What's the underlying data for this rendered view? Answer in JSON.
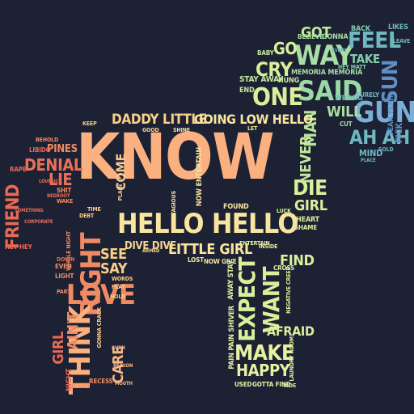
{
  "background": "#1c2133",
  "palette": [
    "#fbb07f",
    "#f9e4a0",
    "#d8ef9b",
    "#9ad9a6",
    "#6fb8c0",
    "#5e8fc6",
    "#e86a57",
    "#f08a62"
  ],
  "words": [
    {
      "text": "KNOW",
      "color": "#fbb07f"
    },
    {
      "text": "HELLO HELLO",
      "color": "#f9e4a0"
    },
    {
      "text": "GUN",
      "color": "#7ab0d8"
    },
    {
      "text": "SAID",
      "color": "#9ad9a6"
    },
    {
      "text": "ONE",
      "color": "#d8ef9b"
    },
    {
      "text": "WAY",
      "color": "#a7dfa5"
    },
    {
      "text": "FEEL",
      "color": "#6fb8c0"
    },
    {
      "text": "SUN",
      "color": "#5e8fc6"
    },
    {
      "text": "AH AH",
      "color": "#6fb8c0"
    },
    {
      "text": "CRY",
      "color": "#d8ef9b"
    },
    {
      "text": "GO",
      "color": "#d8ef9b"
    },
    {
      "text": "GOT",
      "color": "#c3e89e"
    },
    {
      "text": "TAKE",
      "color": "#86cdb1"
    },
    {
      "text": "MAN",
      "color": "#b8e49a"
    },
    {
      "text": "WILL",
      "color": "#a8dea3"
    },
    {
      "text": "DIE",
      "color": "#d8ef9b"
    },
    {
      "text": "GIRL",
      "color": "#d8ef9b"
    },
    {
      "text": "NEVER",
      "color": "#c3e89e"
    },
    {
      "text": "DADDY LITTLE",
      "color": "#fbcf8a"
    },
    {
      "text": "GOING LOW HELLO",
      "color": "#f9e4a0"
    },
    {
      "text": "LITTLE GIRL",
      "color": "#f9e4a0"
    },
    {
      "text": "DIVE DIVE",
      "color": "#f6d68e"
    },
    {
      "text": "RIGHT",
      "color": "#f08a62"
    },
    {
      "text": "LOVE",
      "color": "#f08a62"
    },
    {
      "text": "THINK",
      "color": "#fbb07f"
    },
    {
      "text": "SEE",
      "color": "#fbcf8a"
    },
    {
      "text": "SAY",
      "color": "#fbcf8a"
    },
    {
      "text": "AIN'T",
      "color": "#f08a62"
    },
    {
      "text": "GIRL",
      "color": "#e86a57"
    },
    {
      "text": "CARE",
      "color": "#f8b586"
    },
    {
      "text": "COME",
      "color": "#f9c690"
    },
    {
      "text": "DENIAL",
      "color": "#e9715a"
    },
    {
      "text": "LIE",
      "color": "#e9715a"
    },
    {
      "text": "FRIEND",
      "color": "#e86a57"
    },
    {
      "text": "PINES",
      "color": "#f08a62"
    },
    {
      "text": "EXPECT",
      "color": "#d8ef9b"
    },
    {
      "text": "WANT",
      "color": "#d8ef9b"
    },
    {
      "text": "FIND",
      "color": "#d8ef9b"
    },
    {
      "text": "MAKE",
      "color": "#e8f0a4"
    },
    {
      "text": "HAPPY",
      "color": "#e8f0a4"
    },
    {
      "text": "AFRAID",
      "color": "#d8ef9b"
    },
    {
      "text": "STAY AWAY",
      "color": "#c3e89e"
    },
    {
      "text": "MEMORIA MEMORIA",
      "color": "#a8dea3"
    },
    {
      "text": "PAIN PAIN SHIVER",
      "color": "#e8f0a4"
    },
    {
      "text": "AWAY STAY",
      "color": "#e8f0a4"
    },
    {
      "text": "NOW ENTERTAIN",
      "color": "#f9e4a0"
    },
    {
      "text": "BELIEVE",
      "color": "#a8dea3"
    },
    {
      "text": "GONNA",
      "color": "#a8dea3"
    },
    {
      "text": "BACK",
      "color": "#86cdb1"
    },
    {
      "text": "LIKES",
      "color": "#6fb8c0"
    },
    {
      "text": "WRONG",
      "color": "#6fb8c0"
    },
    {
      "text": "SURELY",
      "color": "#6fb8c0"
    },
    {
      "text": "MIND",
      "color": "#6fb8c0"
    },
    {
      "text": "PICK",
      "color": "#5e8fc6"
    },
    {
      "text": "YEAH YEAH",
      "color": "#5e8fc6"
    },
    {
      "text": "HEY HEY",
      "color": "#e86a57"
    },
    {
      "text": "NIGHT",
      "color": "#e86a57"
    },
    {
      "text": "JESUS",
      "color": "#f08a62"
    },
    {
      "text": "RECESS",
      "color": "#f08a62"
    },
    {
      "text": "USED",
      "color": "#e8f0a4"
    },
    {
      "text": "GOTTA FIND",
      "color": "#e8f0a4"
    },
    {
      "text": "RIDE",
      "color": "#d8ef9b"
    },
    {
      "text": "FOUND",
      "color": "#f9e4a0"
    },
    {
      "text": "LOST",
      "color": "#f9e4a0"
    },
    {
      "text": "NOW GIVE",
      "color": "#f9e4a0"
    },
    {
      "text": "HEART",
      "color": "#d8ef9b"
    },
    {
      "text": "SHAME",
      "color": "#d8ef9b"
    },
    {
      "text": "CROSS",
      "color": "#d8ef9b"
    },
    {
      "text": "HUNG",
      "color": "#c3e89e"
    },
    {
      "text": "END",
      "color": "#c3e89e"
    },
    {
      "text": "BABY",
      "color": "#c3e89e"
    },
    {
      "text": "CUT",
      "color": "#a8dea3"
    },
    {
      "text": "PLACE",
      "color": "#6fb8c0"
    },
    {
      "text": "BEHOLD",
      "color": "#f08a62"
    },
    {
      "text": "LIBIDO",
      "color": "#e86a57"
    },
    {
      "text": "RAPE",
      "color": "#e86a57"
    },
    {
      "text": "EVEN",
      "color": "#f08a62"
    },
    {
      "text": "LIGHT",
      "color": "#f08a62"
    },
    {
      "text": "TIME",
      "color": "#fbcf8a"
    },
    {
      "text": "KEEP",
      "color": "#fbcf8a"
    },
    {
      "text": "SHIT",
      "color": "#f08a62"
    },
    {
      "text": "DEBT",
      "color": "#fbcf8a"
    },
    {
      "text": "GOOD",
      "color": "#fbcf8a"
    },
    {
      "text": "SHINE",
      "color": "#f9e4a0"
    },
    {
      "text": "LET",
      "color": "#f9e4a0"
    },
    {
      "text": "BURN",
      "color": "#f8b586"
    },
    {
      "text": "REASON",
      "color": "#f8b586"
    },
    {
      "text": "INSIDE",
      "color": "#e8f0a4"
    },
    {
      "text": "ENTERTAIN",
      "color": "#e8f0a4"
    },
    {
      "text": "LUCK",
      "color": "#d8ef9b"
    },
    {
      "text": "SOLD",
      "color": "#6fb8c0"
    },
    {
      "text": "HEY MATT",
      "color": "#86cdb1"
    },
    {
      "text": "CONTAGIOUS",
      "color": "#f9e4a0"
    },
    {
      "text": "WHOLE NIGHT",
      "color": "#f08a62"
    },
    {
      "text": "LOVESICK",
      "color": "#e86a57"
    },
    {
      "text": "GONNA CRACK",
      "color": "#fbcf8a"
    },
    {
      "text": "BEDROOT",
      "color": "#e86a57"
    },
    {
      "text": "WAKE",
      "color": "#f08a62"
    },
    {
      "text": "PLAIN",
      "color": "#f9c690"
    },
    {
      "text": "EVERY",
      "color": "#6fb8c0"
    },
    {
      "text": "LAUNDRY ROOM",
      "color": "#e8f0a4"
    },
    {
      "text": "NEGATIVE CREEP",
      "color": "#d8ef9b"
    },
    {
      "text": "SOMETHING",
      "color": "#e86a57"
    },
    {
      "text": "CORPORATE",
      "color": "#e86a57"
    },
    {
      "text": "LEAVE",
      "color": "#6fb8c0"
    },
    {
      "text": "MOUTH",
      "color": "#f8b586"
    },
    {
      "text": "ARMED",
      "color": "#fbcf8a"
    },
    {
      "text": "WORDS",
      "color": "#fbcf8a"
    },
    {
      "text": "PLAY",
      "color": "#fbcf8a"
    },
    {
      "text": "HOLD",
      "color": "#fbcf8a"
    },
    {
      "text": "DOWN",
      "color": "#e86a57"
    },
    {
      "text": "PART",
      "color": "#f08a62"
    }
  ]
}
